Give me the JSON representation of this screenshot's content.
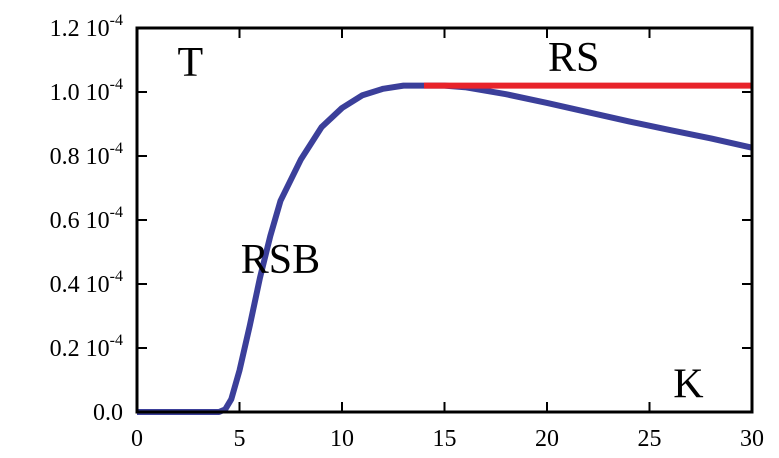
{
  "chart_data": {
    "type": "line",
    "title": "",
    "xlabel": "",
    "ylabel": "",
    "xlim": [
      0,
      30
    ],
    "ylim": [
      0,
      0.00012
    ],
    "grid": false,
    "x_ticks": [
      {
        "value": 0,
        "label": "0"
      },
      {
        "value": 5,
        "label": "5"
      },
      {
        "value": 10,
        "label": "10"
      },
      {
        "value": 15,
        "label": "15"
      },
      {
        "value": 20,
        "label": "20"
      },
      {
        "value": 25,
        "label": "25"
      },
      {
        "value": 30,
        "label": "30"
      }
    ],
    "y_ticks": [
      {
        "value": 0,
        "mantissa": "0.0",
        "exponent": ""
      },
      {
        "value": 2e-05,
        "mantissa": "0.2 10",
        "exponent": "-4"
      },
      {
        "value": 4e-05,
        "mantissa": "0.4 10",
        "exponent": "-4"
      },
      {
        "value": 6e-05,
        "mantissa": "0.6 10",
        "exponent": "-4"
      },
      {
        "value": 8e-05,
        "mantissa": "0.8 10",
        "exponent": "-4"
      },
      {
        "value": 0.0001,
        "mantissa": "1.0 10",
        "exponent": "-4"
      },
      {
        "value": 0.00012,
        "mantissa": "1.2 10",
        "exponent": "-4"
      }
    ],
    "series": [
      {
        "color": "#3b3f9a",
        "x": [
          0,
          4.0,
          4.3,
          4.6,
          5.0,
          5.5,
          6.0,
          6.5,
          7.0,
          8.0,
          9.0,
          10.0,
          11.0,
          12.0,
          13.0,
          14.0,
          15.0,
          16.0,
          18.0,
          20.0,
          22.0,
          24.0,
          26.0,
          28.0,
          30.0
        ],
        "y": [
          0,
          0,
          8e-07,
          4e-06,
          1.3e-05,
          2.7e-05,
          4.2e-05,
          5.5e-05,
          6.6e-05,
          7.9e-05,
          8.9e-05,
          9.5e-05,
          9.9e-05,
          0.000101,
          0.000102,
          0.000102,
          0.000102,
          0.0001015,
          9.93e-05,
          9.66e-05,
          9.37e-05,
          9.08e-05,
          8.81e-05,
          8.55e-05,
          8.26e-05
        ]
      },
      {
        "color": "#e8232a",
        "x": [
          14.0,
          30.0
        ],
        "y": [
          0.000102,
          0.000102
        ]
      }
    ],
    "annotations": [
      {
        "text": "T",
        "x": 2.6,
        "y": 0.000105
      },
      {
        "text": "RS",
        "x": 21.3,
        "y": 0.0001065
      },
      {
        "text": "RSB",
        "x": 7.0,
        "y": 4.35e-05
      },
      {
        "text": "K",
        "x": 26.9,
        "y": 4.5e-06
      }
    ]
  }
}
